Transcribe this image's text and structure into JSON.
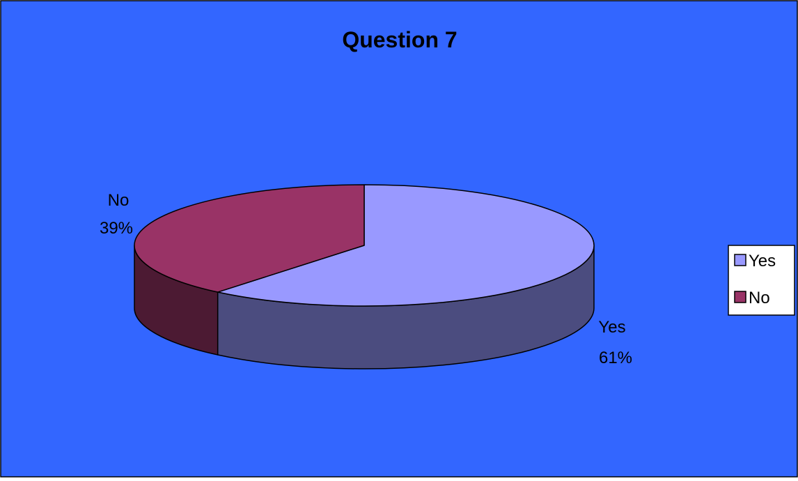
{
  "colors": {
    "chart_background": "#3366FF",
    "yes_top": "#9999FF",
    "yes_side": "#4B4C7F",
    "no_top": "#993366",
    "no_side": "#4C1A33",
    "outline": "#000000"
  },
  "chart_data": {
    "type": "pie",
    "style": "3d",
    "title": "Question 7",
    "categories": [
      "Yes",
      "No"
    ],
    "values": [
      61,
      39
    ],
    "unit": "%",
    "data_labels": [
      {
        "category": "Yes",
        "percent": "61%"
      },
      {
        "category": "No",
        "percent": "39%"
      }
    ],
    "legend": {
      "position": "right",
      "entries": [
        "Yes",
        "No"
      ]
    }
  }
}
